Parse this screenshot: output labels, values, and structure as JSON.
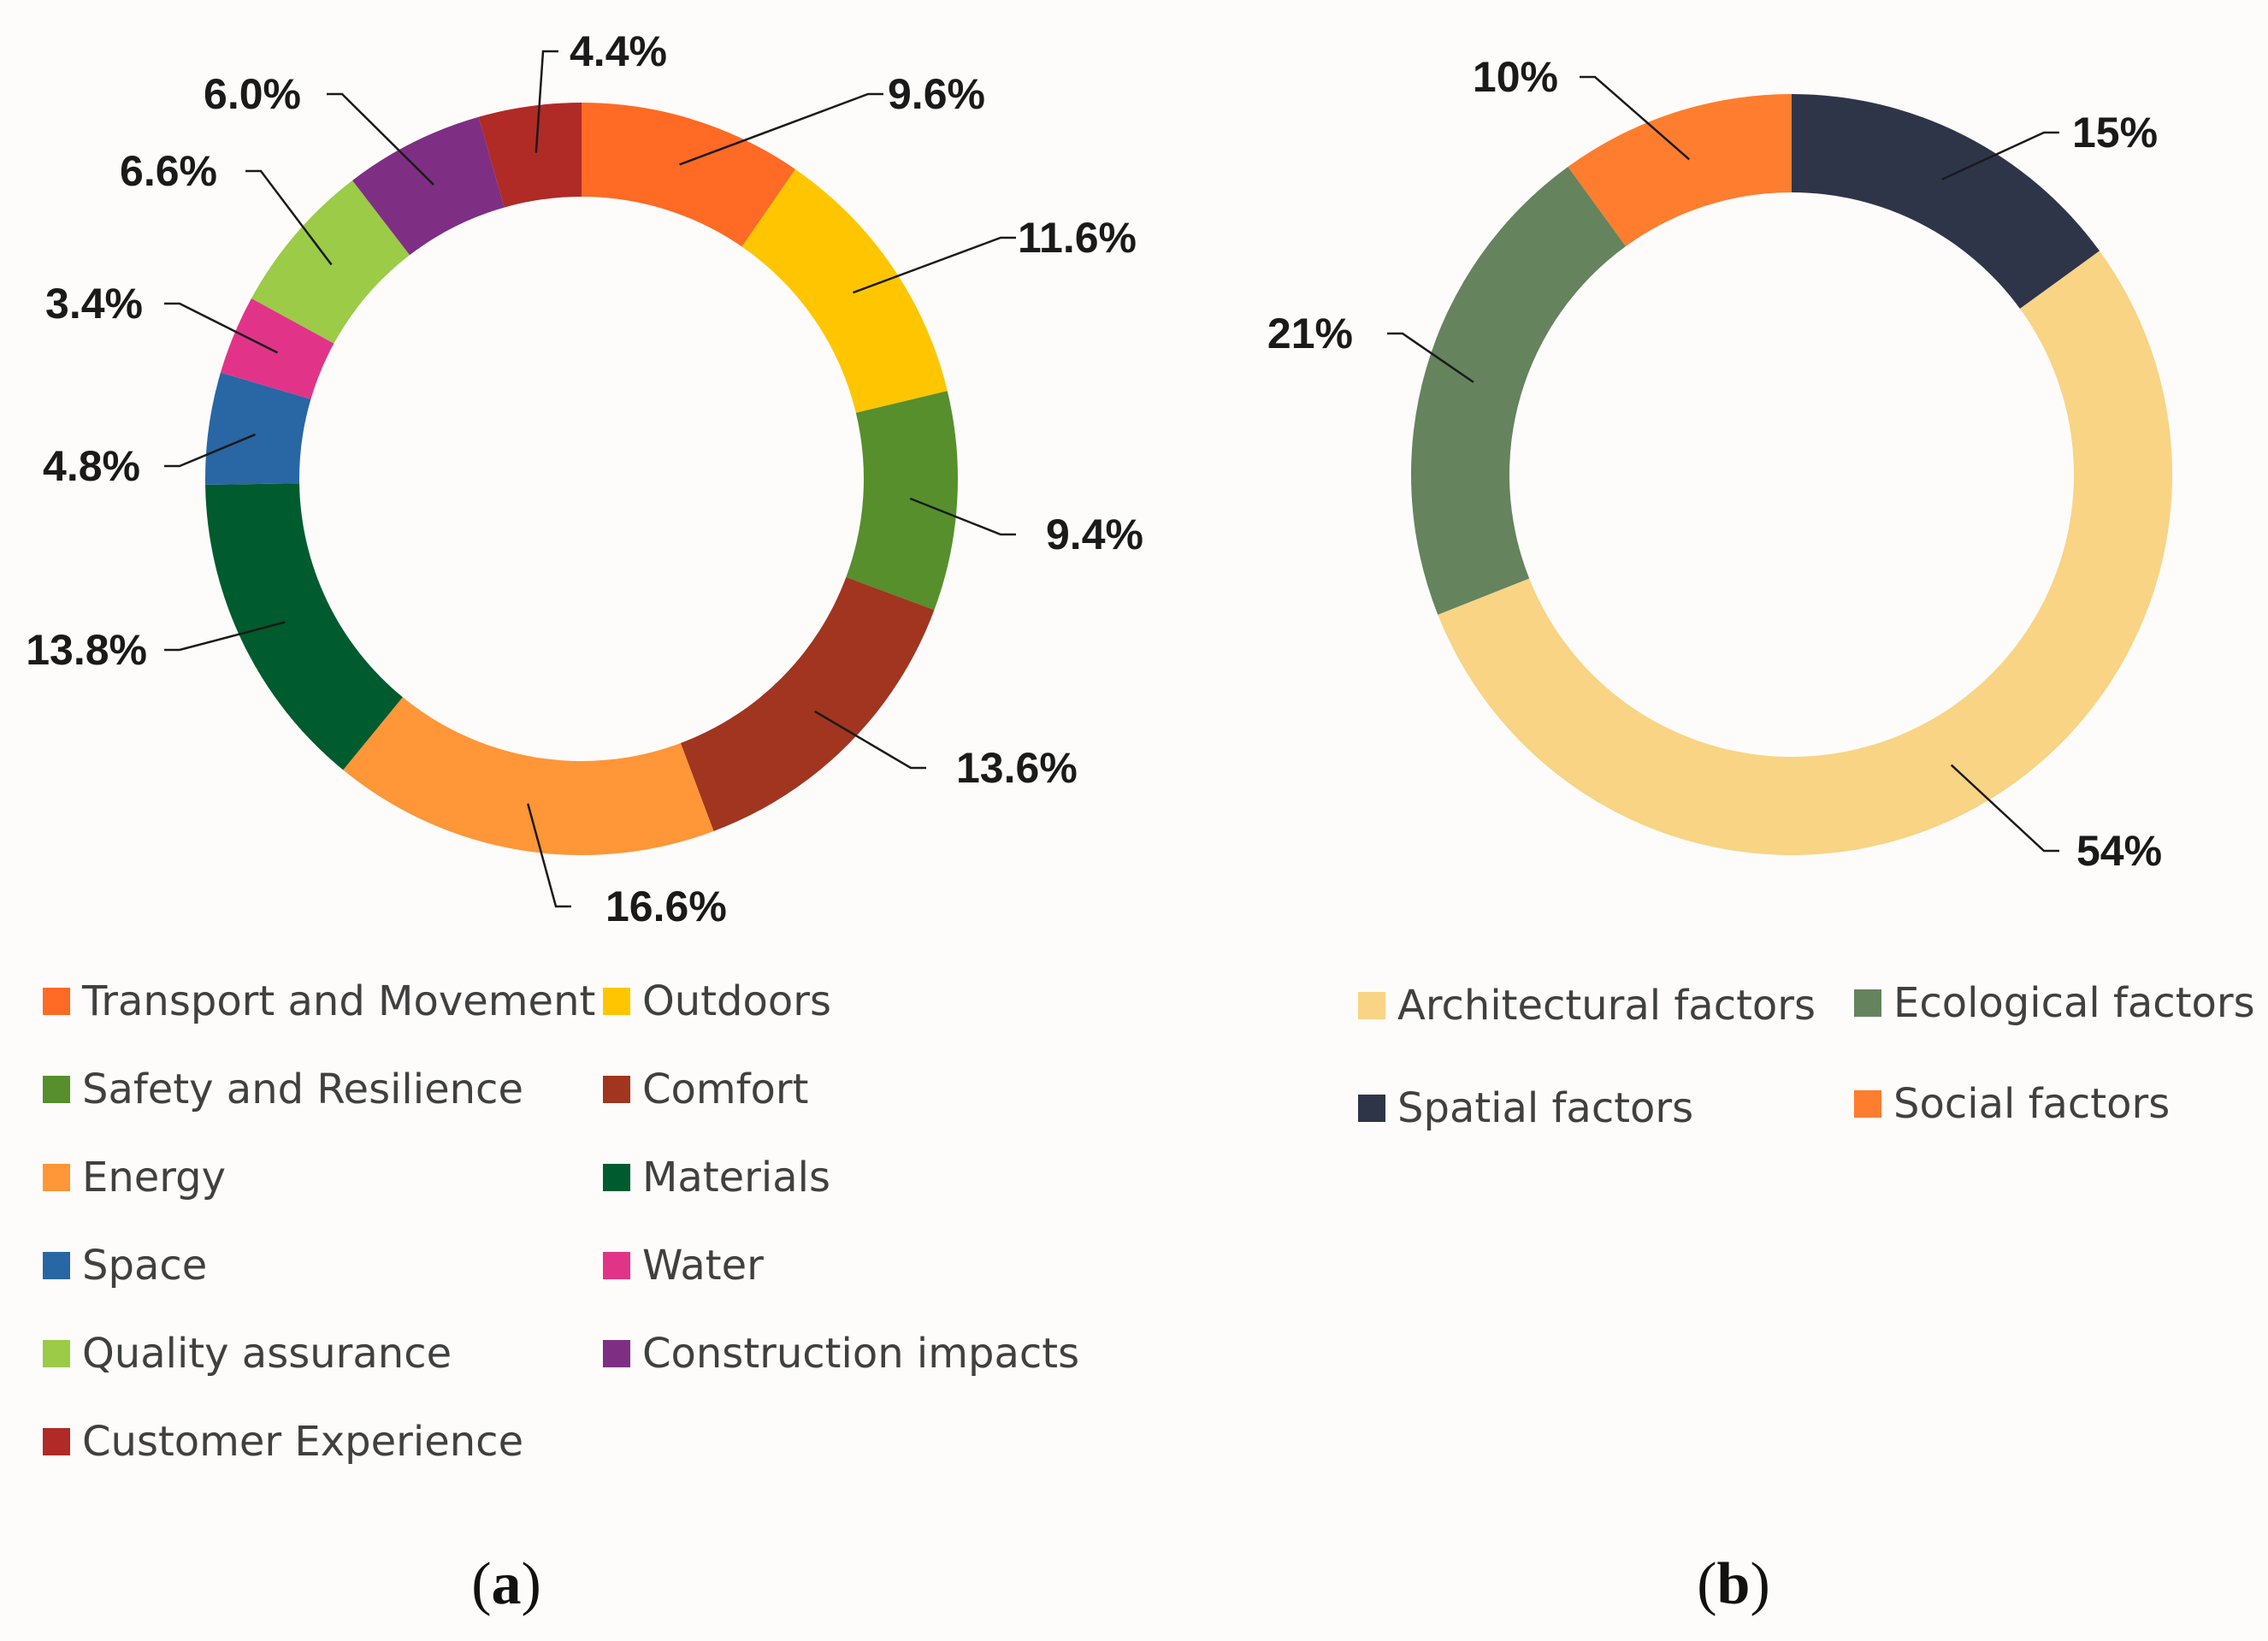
{
  "chart_data": [
    {
      "type": "pie",
      "variant": "donut",
      "panel_label": "a",
      "categories": [
        "Transport and Movement",
        "Outdoors",
        "Safety and Resilience",
        "Comfort",
        "Energy",
        "Materials",
        "Space",
        "Water",
        "Quality assurance",
        "Construction impacts",
        "Customer Experience"
      ],
      "values": [
        9.6,
        11.6,
        9.4,
        13.6,
        16.6,
        13.8,
        4.8,
        3.4,
        6.6,
        6.0,
        4.4
      ],
      "data_labels": [
        "9.6%",
        "11.6%",
        "9.4%",
        "13.6%",
        "16.6%",
        "13.8%",
        "4.8%",
        "3.4%",
        "6.6%",
        "6.0%",
        "4.4%"
      ],
      "colors": [
        "#ff6a24",
        "#ffc600",
        "#568f2c",
        "#a1351f",
        "#ff9637",
        "#005b2e",
        "#2966a4",
        "#e13489",
        "#9bcb47",
        "#7e2f83",
        "#b02a26"
      ],
      "legend_position": "bottom",
      "legend_columns": 2
    },
    {
      "type": "pie",
      "variant": "donut",
      "panel_label": "b",
      "categories": [
        "Spatial factors",
        "Architectural factors",
        "Ecological factors",
        "Social factors"
      ],
      "values": [
        15,
        54,
        21,
        10
      ],
      "data_labels": [
        "15%",
        "54%",
        "21%",
        "10%"
      ],
      "colors": [
        "#2f3549",
        "#f8d484",
        "#65835d",
        "#ff7d2e"
      ],
      "legend_order": [
        "Architectural factors",
        "Ecological factors",
        "Spatial factors",
        "Social factors"
      ],
      "legend_position": "bottom",
      "legend_columns": 2
    }
  ],
  "captions": {
    "a": {
      "open": "(",
      "letter": "a",
      "close": ")"
    },
    "b": {
      "open": "(",
      "letter": "b",
      "close": ")"
    }
  }
}
